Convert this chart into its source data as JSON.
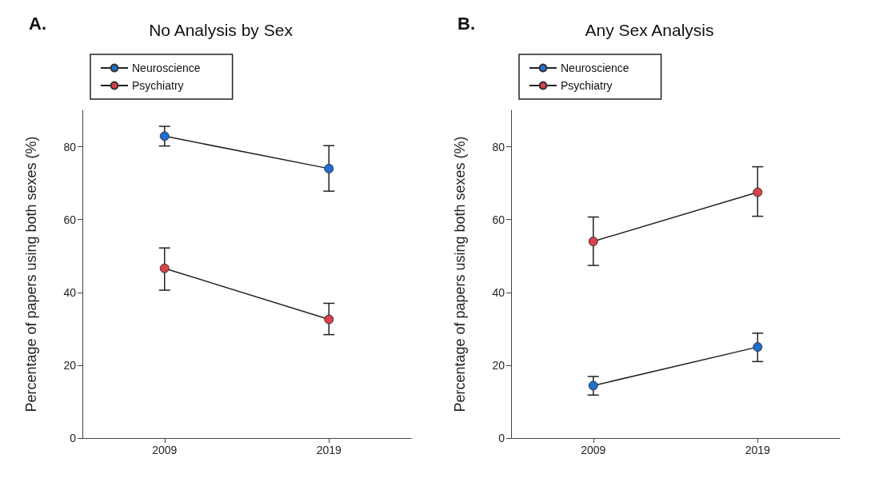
{
  "chart_data": [
    {
      "type": "line",
      "title": "No Analysis by Sex",
      "ylabel": "Percentage of papers using both sexes (%)",
      "annotations": [
        "A."
      ],
      "categories": [
        "2009",
        "2019"
      ],
      "ylim": [
        0,
        90
      ],
      "yticks": [
        0,
        20,
        40,
        60,
        80
      ],
      "legend": "top left",
      "marker": "circle",
      "grid": false,
      "series": [
        {
          "name": "Neuroscience",
          "color": "#1f6fd0",
          "values": [
            82.9,
            74.0
          ],
          "errors": [
            [
              80.2,
              85.6
            ],
            [
              67.8,
              80.3
            ]
          ]
        },
        {
          "name": "Psychiatry",
          "color": "#d8404a",
          "values": [
            46.6,
            32.6
          ],
          "errors": [
            [
              40.6,
              52.2
            ],
            [
              28.4,
              37.0
            ]
          ]
        }
      ]
    },
    {
      "type": "line",
      "title": "Any Sex Analysis",
      "ylabel": "Percentage of papers using both sexes (%)",
      "annotations": [
        "B."
      ],
      "categories": [
        "2009",
        "2019"
      ],
      "ylim": [
        0,
        90
      ],
      "yticks": [
        0,
        20,
        40,
        60,
        80
      ],
      "legend": "top left",
      "marker": "circle",
      "grid": false,
      "series": [
        {
          "name": "Neuroscience",
          "color": "#1f6fd0",
          "values": [
            14.4,
            25.0
          ],
          "errors": [
            [
              11.8,
              16.9
            ],
            [
              21.0,
              28.8
            ]
          ]
        },
        {
          "name": "Psychiatry",
          "color": "#d8404a",
          "values": [
            54.0,
            67.5
          ],
          "errors": [
            [
              47.4,
              60.7
            ],
            [
              60.9,
              74.5
            ]
          ]
        }
      ]
    }
  ]
}
